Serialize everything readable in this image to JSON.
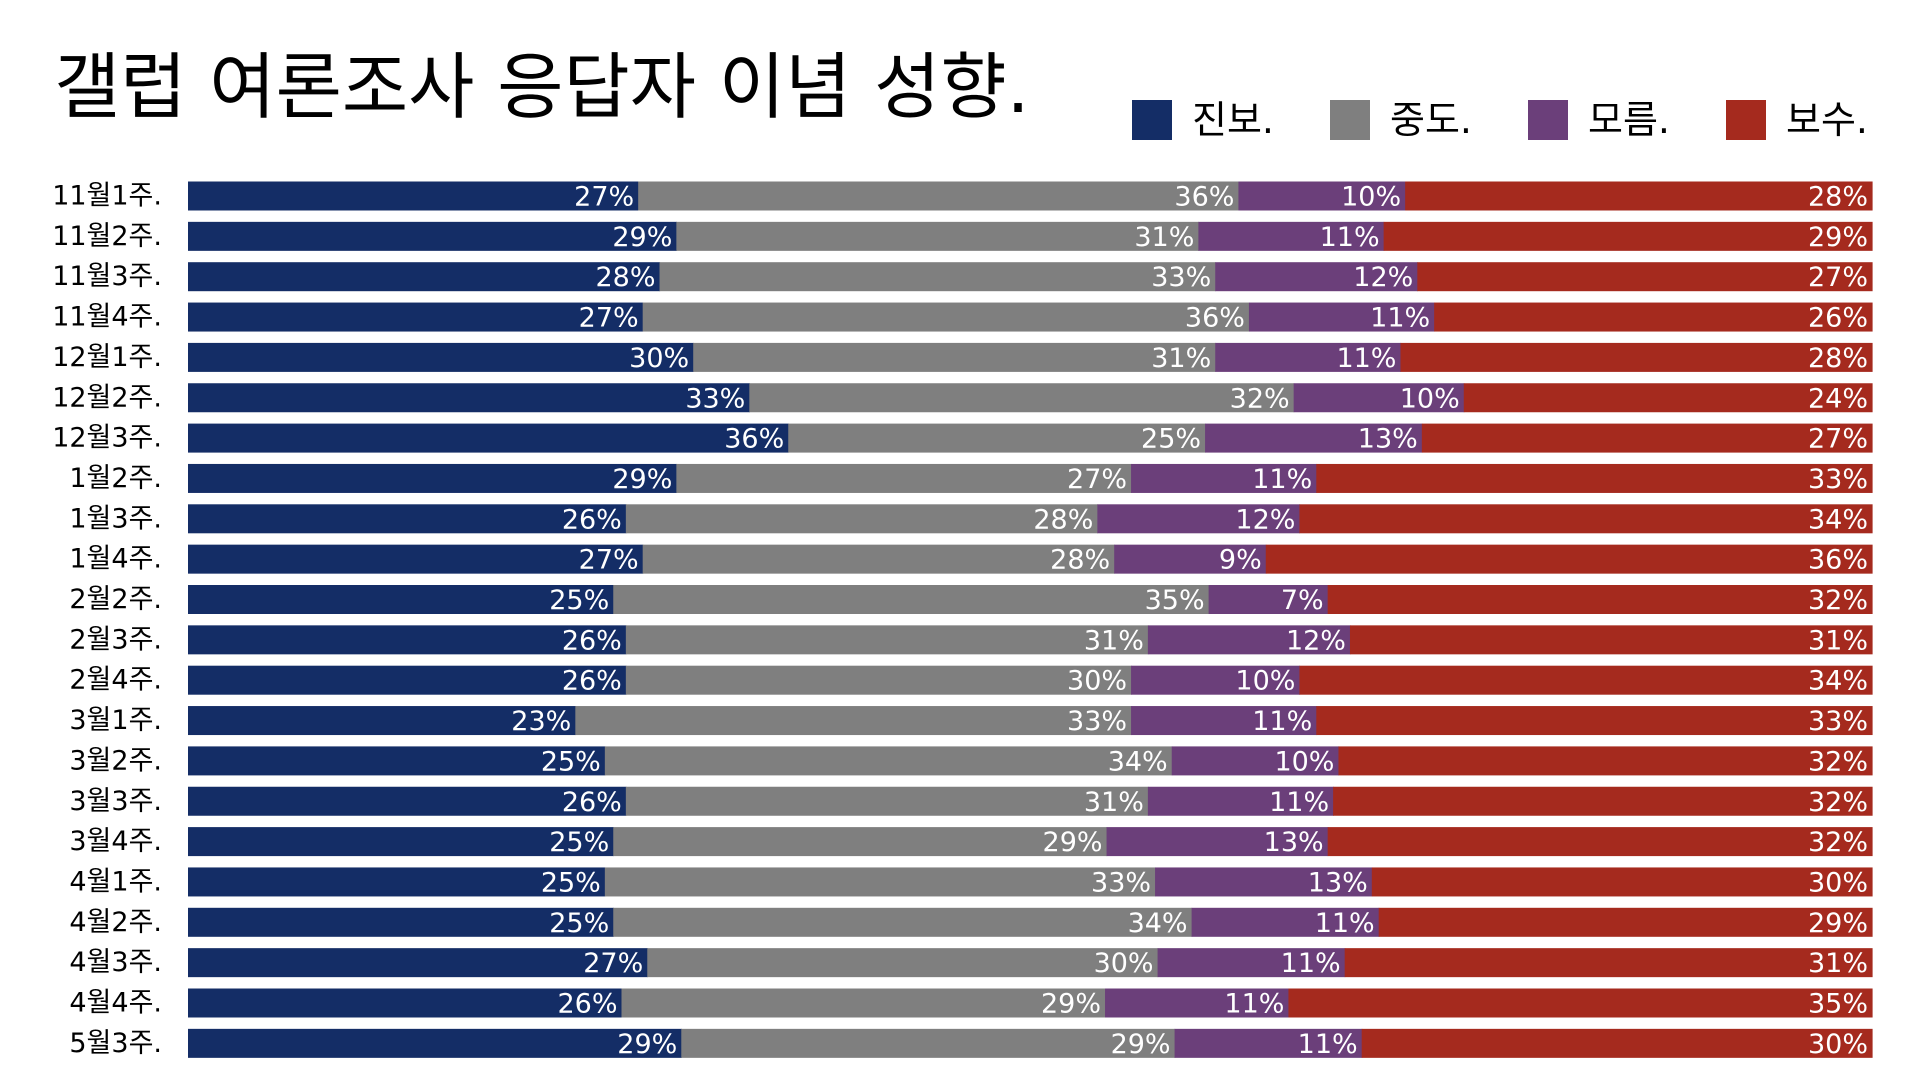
{
  "chart_data": {
    "type": "bar",
    "orientation": "horizontal",
    "stacked": true,
    "normalized": true,
    "title": "갤럽 여론조사 응답자 이념 성향.",
    "legend_position": "top-right",
    "grid": false,
    "xlim": [
      0,
      100
    ],
    "value_suffix": "%",
    "categories": [
      "11월1주.",
      "11월2주.",
      "11월3주.",
      "11월4주.",
      "12월1주.",
      "12월2주.",
      "12월3주.",
      "1월2주.",
      "1월3주.",
      "1월4주.",
      "2월2주.",
      "2월3주.",
      "2월4주.",
      "3월1주.",
      "3월2주.",
      "3월3주.",
      "3월4주.",
      "4월1주.",
      "4월2주.",
      "4월3주.",
      "4월4주.",
      "5월3주."
    ],
    "series": [
      {
        "name": "진보.",
        "color": "#142d66",
        "values": [
          27,
          29,
          28,
          27,
          30,
          33,
          36,
          29,
          26,
          27,
          25,
          26,
          26,
          23,
          25,
          26,
          25,
          25,
          25,
          27,
          26,
          29
        ]
      },
      {
        "name": "중도.",
        "color": "#7f7f7f",
        "values": [
          36,
          31,
          33,
          36,
          31,
          32,
          25,
          27,
          28,
          28,
          35,
          31,
          30,
          33,
          34,
          31,
          29,
          33,
          34,
          30,
          29,
          29
        ]
      },
      {
        "name": "모름.",
        "color": "#6b3f7a",
        "values": [
          10,
          11,
          12,
          11,
          11,
          10,
          13,
          11,
          12,
          9,
          7,
          12,
          10,
          11,
          10,
          11,
          13,
          13,
          11,
          11,
          11,
          11
        ]
      },
      {
        "name": "보수.",
        "color": "#a52a1e",
        "values": [
          28,
          29,
          27,
          26,
          28,
          24,
          27,
          33,
          34,
          36,
          32,
          31,
          34,
          33,
          32,
          32,
          32,
          30,
          29,
          31,
          35,
          30
        ]
      }
    ]
  }
}
